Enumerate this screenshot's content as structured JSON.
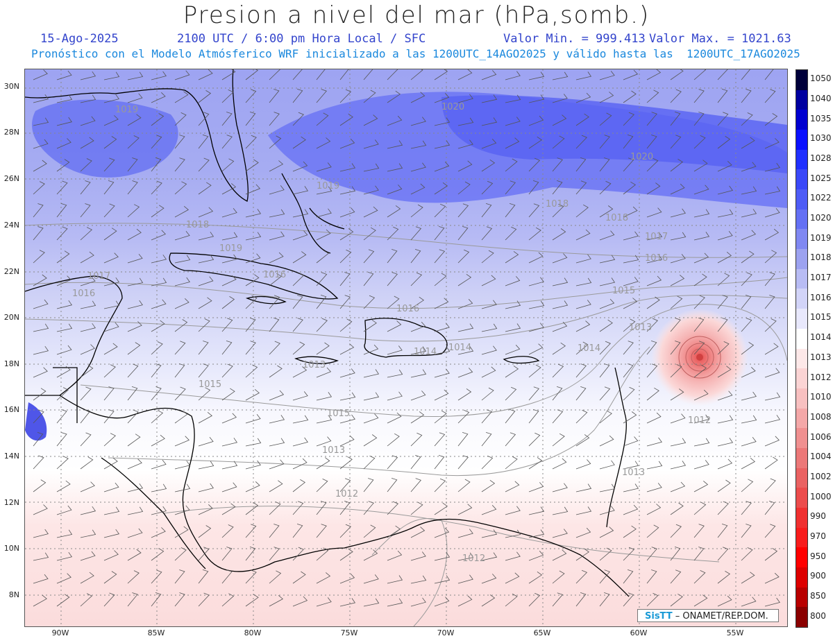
{
  "header": {
    "title": "Presion a nivel del mar (hPa,somb.)",
    "date": "15-Ago-2025",
    "time_text": "2100 UTC / 6:00 pm Hora Local / SFC",
    "min_text": "Valor Min. = 999.413",
    "max_text": "Valor Max. = 1021.63",
    "forecast_text": "Pronóstico con el Modelo Atmósferico WRF inicializado a las 1200UTC_14AGO2025 y válido hasta las  1200UTC_17AGO2025"
  },
  "axes": {
    "lat_labels": [
      "30N",
      "28N",
      "26N",
      "24N",
      "22N",
      "20N",
      "18N",
      "16N",
      "14N",
      "12N",
      "10N",
      "8N"
    ],
    "lon_labels": [
      "90W",
      "85W",
      "80W",
      "75W",
      "70W",
      "65W",
      "60W",
      "55W"
    ]
  },
  "colorbar": {
    "labels": [
      "1050",
      "1040",
      "1035",
      "1030",
      "1028",
      "1025",
      "1022",
      "1020",
      "1019",
      "1018",
      "1017",
      "1016",
      "1015",
      "1014",
      "1013",
      "1012",
      "1010",
      "1008",
      "1006",
      "1004",
      "1002",
      "1000",
      "990",
      "970",
      "950",
      "900",
      "850",
      "800"
    ],
    "colors": [
      "#00003a",
      "#0000a0",
      "#0000d0",
      "#0a10ff",
      "#2030ff",
      "#3a48f8",
      "#4e5cf6",
      "#6470f4",
      "#8088f2",
      "#9ca2f0",
      "#b8bcf4",
      "#d2d4f8",
      "#e8e8fc",
      "#ffffff",
      "#fde8e8",
      "#fbd4d4",
      "#f8c0c0",
      "#f4a8a8",
      "#f09090",
      "#ec7878",
      "#ea6262",
      "#ec4c4c",
      "#f03030",
      "#f81c1c",
      "#ff0000",
      "#dd0000",
      "#b80000",
      "#8a0000"
    ]
  },
  "map": {
    "isobar_labels": [
      {
        "text": "1019"
      },
      {
        "text": "1020"
      },
      {
        "text": "1020"
      },
      {
        "text": "1019"
      },
      {
        "text": "1018"
      },
      {
        "text": "1018"
      },
      {
        "text": "1018"
      },
      {
        "text": "1019"
      },
      {
        "text": "1017"
      },
      {
        "text": "1017"
      },
      {
        "text": "1016"
      },
      {
        "text": "1016"
      },
      {
        "text": "1016"
      },
      {
        "text": "1016"
      },
      {
        "text": "1015"
      },
      {
        "text": "1015"
      },
      {
        "text": "1015"
      },
      {
        "text": "1014"
      },
      {
        "text": "1014"
      },
      {
        "text": "1013"
      },
      {
        "text": "1013"
      },
      {
        "text": "1013"
      },
      {
        "text": "1012"
      },
      {
        "text": "1012"
      },
      {
        "text": "1012"
      },
      {
        "text": "1013"
      },
      {
        "text": "1014"
      }
    ]
  },
  "credit": {
    "brand": "SisTT",
    "text": " – ONAMET/REP.DOM."
  }
}
